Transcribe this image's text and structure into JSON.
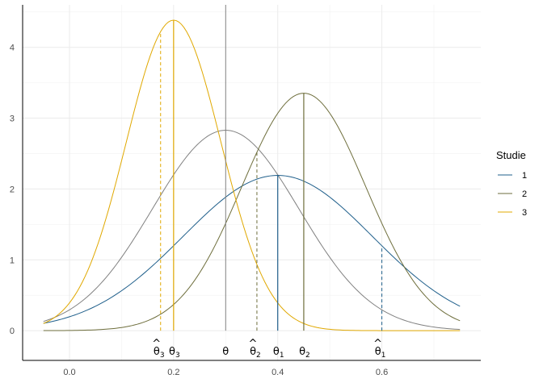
{
  "chart_data": {
    "type": "line",
    "title": "",
    "xlabel": "",
    "ylabel": "",
    "xlim": [
      -0.09,
      0.79
    ],
    "ylim": [
      -0.42,
      4.6
    ],
    "x_ticks": [
      0.0,
      0.2,
      0.4,
      0.6
    ],
    "x_tick_labels": [
      "0.0",
      "0.2",
      "0.4",
      "0.6"
    ],
    "y_ticks": [
      0,
      1,
      2,
      3,
      4
    ],
    "y_tick_labels": [
      "0",
      "1",
      "2",
      "3",
      "4"
    ],
    "grid": true,
    "legend": {
      "title": "Studie",
      "position": "right",
      "entries": [
        "1",
        "2",
        "3"
      ]
    },
    "x_range": [
      -0.05,
      0.75
    ],
    "series": [
      {
        "name": "1",
        "color": "#1f5f8b",
        "curve": "normal",
        "mean": 0.4,
        "sd": 0.182
      },
      {
        "name": "2",
        "color": "#6e6e3c",
        "curve": "normal",
        "mean": 0.45,
        "sd": 0.119
      },
      {
        "name": "3",
        "color": "#e0a800",
        "curve": "normal",
        "mean": 0.2,
        "sd": 0.091
      }
    ],
    "pooled_curve": {
      "color": "#808080",
      "mean": 0.3,
      "sd": 0.141
    },
    "pooled_theta": {
      "x": 0.3,
      "color": "#808080"
    },
    "markers": [
      {
        "series": "1",
        "theta": 0.4,
        "theta_hat": 0.6
      },
      {
        "series": "2",
        "theta": 0.45,
        "theta_hat": 0.36
      },
      {
        "series": "3",
        "theta": 0.2,
        "theta_hat": 0.175
      }
    ],
    "annotations": {
      "theta": "θ",
      "theta_hat_symbol": "^",
      "subscripts": [
        "1",
        "2",
        "3"
      ]
    }
  }
}
